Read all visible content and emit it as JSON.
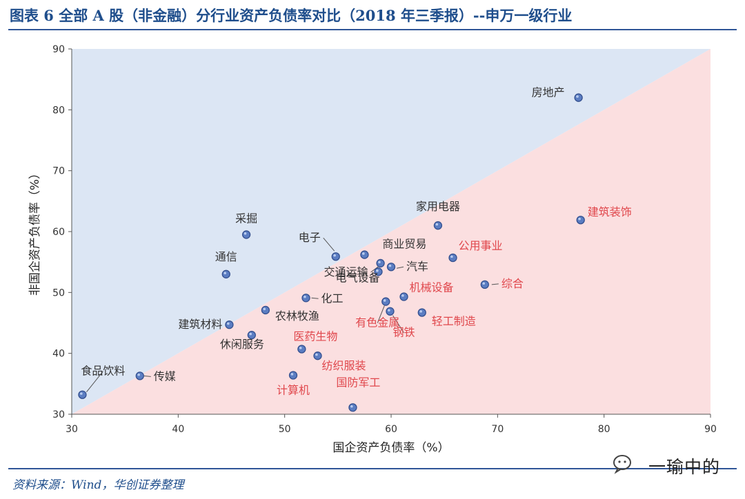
{
  "header": {
    "title": "图表 6   全部 A 股（非金融）分行业资产负债率对比（2018 年三季报）--申万一级行业"
  },
  "footer": {
    "source": "资料来源：Wind，华创证券整理",
    "watermark": "一瑜中的",
    "watermark_icon": "wechat-icon"
  },
  "chart_data": {
    "type": "scatter",
    "title": "",
    "xlabel": "国企资产负债率（%）",
    "ylabel": "非国企资产负债率（%）",
    "xlim": [
      30,
      90
    ],
    "ylim": [
      30,
      90
    ],
    "xticks": [
      "30",
      "40",
      "50",
      "60",
      "70",
      "80",
      "90"
    ],
    "yticks": [
      "30",
      "40",
      "50",
      "60",
      "70",
      "80",
      "90"
    ],
    "grid": false,
    "background_regions": {
      "above_diagonal": "#dce6f4",
      "below_diagonal": "#fbdfe0"
    },
    "marker_color": "#5b7dc2",
    "label_colors": {
      "above": "#333333",
      "below": "#e0474c"
    },
    "points": [
      {
        "name": "房地产",
        "x": 77.6,
        "y": 82.0,
        "zone": "above"
      },
      {
        "name": "建筑装饰",
        "x": 77.8,
        "y": 61.9,
        "zone": "below"
      },
      {
        "name": "家用电器",
        "x": 64.4,
        "y": 61.0,
        "zone": "above"
      },
      {
        "name": "采掘",
        "x": 46.4,
        "y": 59.5,
        "zone": "above"
      },
      {
        "name": "电子",
        "x": 54.8,
        "y": 55.9,
        "zone": "above"
      },
      {
        "name": "商业贸易",
        "x": 57.5,
        "y": 56.2,
        "zone": "above"
      },
      {
        "name": "公用事业",
        "x": 65.8,
        "y": 55.7,
        "zone": "below"
      },
      {
        "name": "交通运输",
        "x": 59.0,
        "y": 54.8,
        "zone": "above"
      },
      {
        "name": "汽车",
        "x": 60.0,
        "y": 54.2,
        "zone": "above"
      },
      {
        "name": "电气设备",
        "x": 58.8,
        "y": 53.4,
        "zone": "above"
      },
      {
        "name": "通信",
        "x": 44.5,
        "y": 53.0,
        "zone": "above"
      },
      {
        "name": "综合",
        "x": 68.8,
        "y": 51.3,
        "zone": "below"
      },
      {
        "name": "机械设备",
        "x": 61.2,
        "y": 49.3,
        "zone": "below"
      },
      {
        "name": "化工",
        "x": 52.0,
        "y": 49.1,
        "zone": "above"
      },
      {
        "name": "有色金属",
        "x": 59.5,
        "y": 48.5,
        "zone": "below"
      },
      {
        "name": "农林牧渔",
        "x": 48.2,
        "y": 47.1,
        "zone": "above"
      },
      {
        "name": "钢铁",
        "x": 59.9,
        "y": 46.9,
        "zone": "below"
      },
      {
        "name": "轻工制造",
        "x": 62.9,
        "y": 46.7,
        "zone": "below"
      },
      {
        "name": "建筑材料",
        "x": 44.8,
        "y": 44.7,
        "zone": "above"
      },
      {
        "name": "休闲服务",
        "x": 46.9,
        "y": 43.0,
        "zone": "above"
      },
      {
        "name": "医药生物",
        "x": 51.6,
        "y": 40.7,
        "zone": "below"
      },
      {
        "name": "纺织服装",
        "x": 53.1,
        "y": 39.6,
        "zone": "below"
      },
      {
        "name": "传媒",
        "x": 36.4,
        "y": 36.3,
        "zone": "above"
      },
      {
        "name": "计算机",
        "x": 50.8,
        "y": 36.4,
        "zone": "below"
      },
      {
        "name": "食品饮料",
        "x": 31.0,
        "y": 33.2,
        "zone": "above"
      },
      {
        "name": "国防军工",
        "x": 56.4,
        "y": 31.1,
        "zone": "below"
      }
    ]
  }
}
